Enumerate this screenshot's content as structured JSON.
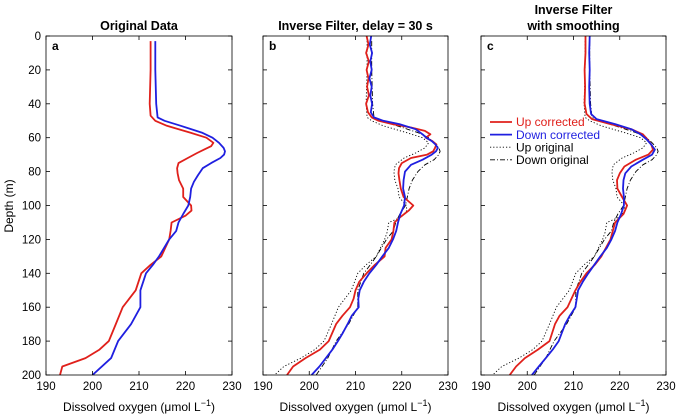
{
  "chart_data": {
    "type": "line",
    "ylabel": "Depth (m)",
    "y_reversed": true,
    "ylim": [
      0,
      200
    ],
    "xlim": [
      190,
      230
    ],
    "xticks": [
      190,
      200,
      210,
      220,
      230
    ],
    "yticks": [
      0,
      20,
      40,
      60,
      80,
      100,
      120,
      140,
      160,
      180,
      200
    ],
    "xlabel_prefix": "Dissolved oxygen (μmol L",
    "xlabel_sup": "−1",
    "xlabel_suffix": ")",
    "colors": {
      "up": "#e0201b",
      "down": "#1f1fe0",
      "orig": "#000000"
    },
    "legend": {
      "up_corrected": "Up corrected",
      "down_corrected": "Down corrected",
      "up_original": "Up original",
      "down_original": "Down original"
    },
    "panels": [
      {
        "label": "a",
        "title_lines": [
          "Original Data"
        ],
        "series": [
          {
            "name": "Up original",
            "style": "up",
            "depth": [
              3,
              20,
              40,
              47,
              50,
              53,
              57,
              60,
              63,
              65,
              67,
              69,
              72,
              75,
              78,
              81,
              85,
              90,
              95,
              100,
              103,
              106,
              110,
              115,
              120,
              130,
              135,
              140,
              150,
              160,
              170,
              180,
              185,
              190,
              195,
              200
            ],
            "x": [
              212.5,
              212.5,
              212.3,
              212.5,
              213.5,
              216,
              221,
              224.5,
              226,
              225.5,
              224,
              222.5,
              220.5,
              218.5,
              218.2,
              218.3,
              218.6,
              219.5,
              219.5,
              221.2,
              221.3,
              220,
              217,
              216.8,
              216.5,
              214.8,
              212.5,
              210.5,
              209.3,
              206.5,
              205,
              203.5,
              201.5,
              198.5,
              193.5,
              193
            ]
          },
          {
            "name": "Down original",
            "style": "down",
            "depth": [
              3,
              20,
              40,
              48,
              50,
              53,
              57,
              60,
              63,
              66,
              68,
              70,
              72,
              75,
              78,
              82,
              86,
              90,
              95,
              100,
              105,
              110,
              115,
              120,
              130,
              135,
              140,
              150,
              160,
              170,
              180,
              190,
              200
            ],
            "x": [
              213.5,
              213.5,
              213.7,
              214,
              215.5,
              219,
              223.5,
              225.8,
              227.2,
              228.2,
              228.5,
              228.3,
              227.5,
              225.5,
              223.7,
              222.7,
              221.8,
              221.2,
              221,
              220.6,
              219.5,
              218.5,
              218,
              216.5,
              214.3,
              213,
              211.5,
              210.3,
              210.3,
              208.3,
              205.5,
              204,
              200
            ]
          }
        ]
      },
      {
        "label": "b",
        "title_lines": [
          "Inverse Filter, delay = 30 s"
        ],
        "series": [
          {
            "name": "Up original",
            "style": "up-orig",
            "depth": [
              3,
              20,
              40,
              48,
              50,
              53,
              57,
              60,
              63,
              66,
              69,
              72,
              76,
              80,
              85,
              90,
              95,
              100,
              103,
              107,
              110,
              116,
              120,
              130,
              135,
              140,
              150,
              160,
              170,
              180,
              185,
              190,
              195,
              200
            ],
            "x": [
              212.5,
              212.5,
              212.3,
              212.5,
              213.5,
              216,
              221,
              224.5,
              225.8,
              225,
              223,
              220.5,
              218.6,
              218.3,
              218.5,
              219.2,
              219.4,
              221,
              221.1,
              219.8,
              217.2,
              216.8,
              216.3,
              214.5,
              212.3,
              210.5,
              209.1,
              206.3,
              204.8,
              203.2,
              201.2,
              198.2,
              194.5,
              192.5
            ]
          },
          {
            "name": "Down original",
            "style": "down-orig",
            "depth": [
              3,
              20,
              40,
              48,
              50,
              53,
              57,
              60,
              63,
              66,
              68,
              70,
              73,
              76,
              80,
              85,
              90,
              95,
              100,
              105,
              110,
              115,
              120,
              130,
              135,
              140,
              150,
              160,
              170,
              180,
              190,
              200
            ],
            "x": [
              213.5,
              213.5,
              213.7,
              214,
              215.5,
              219,
              223.5,
              225.8,
              227,
              228,
              228.3,
              228,
              227,
              225,
              223.5,
              222.3,
              221.6,
              221.2,
              220.8,
              219.6,
              218.7,
              218.2,
              216.7,
              214.5,
              213.2,
              211.8,
              210.5,
              210.5,
              208.5,
              205.8,
              204,
              201.5
            ]
          },
          {
            "name": "Up corrected",
            "style": "up",
            "depth": [
              0,
              5,
              10,
              15,
              20,
              25,
              30,
              35,
              40,
              45,
              48,
              50,
              52,
              54,
              56,
              58,
              60,
              62,
              64,
              66,
              68,
              70,
              72,
              75,
              78,
              81,
              85,
              90,
              95,
              100,
              103,
              107,
              110,
              115,
              120,
              125,
              130,
              135,
              140,
              145,
              150,
              155,
              160,
              165,
              170,
              175,
              180,
              185,
              190,
              195,
              200
            ],
            "x": [
              212.4,
              212.8,
              212.3,
              212.9,
              212.4,
              212.8,
              212.5,
              212.9,
              212.3,
              212.7,
              213.5,
              215,
              218,
              222,
              225,
              226.2,
              225.2,
              226.6,
              227.5,
              227.2,
              226.8,
              225.5,
              222,
              220,
              219.4,
              219.3,
              219.5,
              219.8,
              220.4,
              222.5,
              221.5,
              219.6,
              218.4,
              218.2,
              217.8,
              216.5,
              216.3,
              214.2,
              212.4,
              210.8,
              210,
              209.6,
              208.8,
              207.2,
              205.8,
              205,
              204.2,
              202.3,
              199.2,
              196.5,
              195.2
            ]
          },
          {
            "name": "Down corrected",
            "style": "down",
            "depth": [
              0,
              5,
              10,
              15,
              20,
              25,
              30,
              35,
              40,
              45,
              48,
              50,
              52,
              55,
              58,
              60,
              62,
              64,
              66,
              68,
              70,
              73,
              76,
              80,
              85,
              90,
              95,
              100,
              105,
              110,
              115,
              120,
              125,
              130,
              135,
              140,
              145,
              150,
              155,
              160,
              165,
              170,
              175,
              180,
              185,
              190,
              195,
              200
            ],
            "x": [
              213.4,
              213.1,
              213.6,
              213.2,
              213.5,
              213.0,
              213.5,
              213.2,
              213.6,
              213.3,
              214,
              216,
              219.5,
              223,
              224.5,
              225.3,
              226.5,
              227.3,
              227.8,
              227.4,
              226.5,
              224.5,
              222,
              220.7,
              220.4,
              220.3,
              220.7,
              220.5,
              219.7,
              219.2,
              218.8,
              218.1,
              217.2,
              215.8,
              214.5,
              213,
              211.8,
              210.9,
              210.6,
              210.7,
              209.2,
              208.3,
              207.3,
              206.2,
              205,
              203.6,
              202.2,
              200.5
            ]
          }
        ]
      },
      {
        "label": "c",
        "title_lines": [
          "Inverse Filter",
          "with smoothing"
        ],
        "series": [
          {
            "name": "Up original",
            "style": "up-orig",
            "depth": [
              3,
              20,
              40,
              48,
              50,
              53,
              57,
              60,
              63,
              66,
              69,
              72,
              76,
              80,
              85,
              90,
              95,
              100,
              103,
              107,
              110,
              116,
              120,
              130,
              135,
              140,
              150,
              160,
              170,
              180,
              185,
              190,
              195,
              200
            ],
            "x": [
              212.5,
              212.5,
              212.3,
              212.5,
              213.5,
              216,
              221,
              224.5,
              225.8,
              225,
              223,
              220.5,
              218.6,
              218.3,
              218.5,
              219.2,
              219.4,
              221,
              221.1,
              219.8,
              217.2,
              216.8,
              216.3,
              214.5,
              212.3,
              210.5,
              209.1,
              206.3,
              204.8,
              203.2,
              201.2,
              198.2,
              194.5,
              192.5
            ]
          },
          {
            "name": "Down original",
            "style": "down-orig",
            "depth": [
              3,
              20,
              40,
              48,
              50,
              53,
              57,
              60,
              63,
              66,
              68,
              70,
              73,
              76,
              80,
              85,
              90,
              95,
              100,
              105,
              110,
              115,
              120,
              130,
              135,
              140,
              150,
              160,
              170,
              180,
              190,
              200
            ],
            "x": [
              213.5,
              213.5,
              213.7,
              214,
              215.5,
              219,
              223.5,
              225.8,
              227,
              228,
              228.3,
              228,
              227,
              225,
              223.5,
              222.3,
              221.6,
              221.2,
              220.8,
              219.6,
              218.7,
              218.2,
              216.7,
              214.5,
              213.2,
              211.8,
              210.5,
              210.5,
              208.5,
              205.8,
              204,
              201.5
            ]
          },
          {
            "name": "Up corrected",
            "style": "up",
            "depth": [
              0,
              10,
              20,
              30,
              40,
              46,
              49,
              52,
              55,
              58,
              61,
              64,
              67,
              70,
              73,
              77,
              81,
              85,
              90,
              95,
              100,
              105,
              110,
              115,
              120,
              125,
              130,
              135,
              140,
              145,
              150,
              160,
              165,
              170,
              180,
              185,
              190,
              195,
              200
            ],
            "x": [
              212.6,
              212.6,
              212.4,
              212.5,
              212.4,
              212.8,
              214,
              218,
              222.5,
              225,
              226,
              226.8,
              227.2,
              226.2,
              223.5,
              221,
              220,
              219.4,
              219.5,
              220.5,
              221.6,
              220.8,
              219,
              218.5,
              218,
              217,
              216,
              214.6,
              212.8,
              211.5,
              210.4,
              208.7,
              207,
              206,
              204.8,
              202.3,
              199.5,
              197.6,
              196.2
            ]
          },
          {
            "name": "Down corrected",
            "style": "down",
            "depth": [
              0,
              10,
              20,
              30,
              40,
              46,
              49,
              52,
              55,
              58,
              61,
              64,
              67,
              70,
              73,
              77,
              81,
              85,
              90,
              95,
              100,
              105,
              110,
              115,
              120,
              125,
              130,
              135,
              140,
              145,
              150,
              160,
              165,
              170,
              180,
              185,
              190,
              195,
              200
            ],
            "x": [
              213.5,
              213.4,
              213.5,
              213.4,
              213.5,
              213.8,
              215,
              219,
              222.5,
              224.5,
              225.8,
              226.8,
              227.6,
              227,
              225,
              222.5,
              221.2,
              220.8,
              220.7,
              220.9,
              220.9,
              220.3,
              219.5,
              219,
              218.2,
              217.2,
              215.8,
              214.5,
              213.2,
              212,
              211,
              210.4,
              209.2,
              208.2,
              206.8,
              205.5,
              204,
              202.5,
              201
            ]
          }
        ]
      }
    ]
  }
}
